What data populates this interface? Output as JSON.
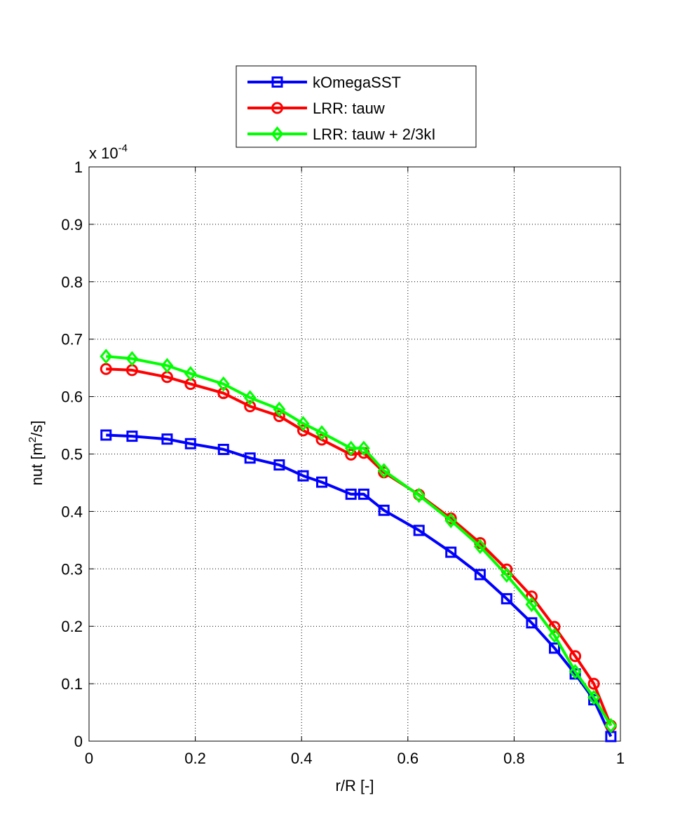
{
  "chart_data": {
    "type": "line",
    "xlabel": "r/R [-]",
    "ylabel_main": "nut [m",
    "ylabel_sup": "2",
    "ylabel_tail": "/s]",
    "y_multiplier_base": "x 10",
    "y_multiplier_exp": "-4",
    "xlim": [
      0,
      1
    ],
    "ylim": [
      0,
      1
    ],
    "xticks": [
      "0",
      "0.2",
      "0.4",
      "0.6",
      "0.8",
      "1"
    ],
    "yticks": [
      "0",
      "0.1",
      "0.2",
      "0.3",
      "0.4",
      "0.5",
      "0.6",
      "0.7",
      "0.8",
      "0.9",
      "1"
    ],
    "grid": true,
    "legend_position": "top-center",
    "x": [
      0.032,
      0.081,
      0.147,
      0.191,
      0.253,
      0.303,
      0.358,
      0.403,
      0.438,
      0.493,
      0.517,
      0.555,
      0.621,
      0.681,
      0.736,
      0.786,
      0.833,
      0.876,
      0.915,
      0.95,
      0.982
    ],
    "series": [
      {
        "name": "kOmegaSST",
        "color": "#0000ff",
        "marker": "square",
        "values": [
          0.533,
          0.531,
          0.526,
          0.518,
          0.508,
          0.493,
          0.481,
          0.462,
          0.451,
          0.43,
          0.43,
          0.402,
          0.367,
          0.329,
          0.29,
          0.248,
          0.206,
          0.162,
          0.117,
          0.072,
          0.008
        ]
      },
      {
        "name": "LRR: tauw",
        "color": "#ff0000",
        "marker": "circle",
        "values": [
          0.648,
          0.646,
          0.634,
          0.622,
          0.606,
          0.583,
          0.566,
          0.541,
          0.525,
          0.499,
          0.502,
          0.468,
          0.429,
          0.388,
          0.345,
          0.299,
          0.252,
          0.199,
          0.148,
          0.1,
          0.027
        ]
      },
      {
        "name": "LRR: tauw + 2/3kI",
        "color": "#00ff00",
        "marker": "diamond",
        "values": [
          0.67,
          0.666,
          0.654,
          0.64,
          0.622,
          0.598,
          0.578,
          0.553,
          0.537,
          0.51,
          0.51,
          0.471,
          0.428,
          0.384,
          0.339,
          0.289,
          0.238,
          0.184,
          0.121,
          0.076,
          0.027
        ]
      }
    ]
  }
}
